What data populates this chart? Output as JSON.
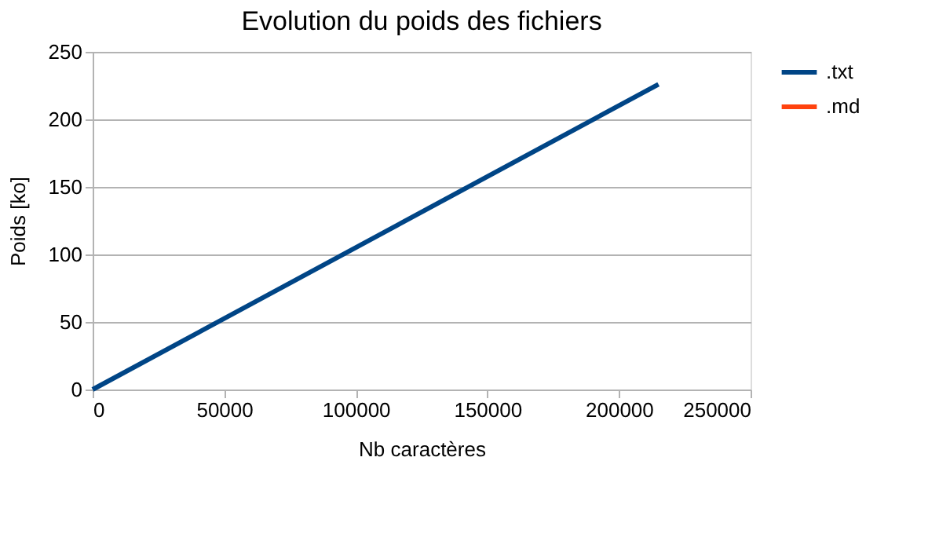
{
  "chart_data": {
    "type": "line",
    "title": "Evolution du poids des fichiers",
    "xlabel": "Nb caractères",
    "ylabel": "Poids [ko]",
    "x": [
      0,
      215000
    ],
    "series": [
      {
        "name": ".txt",
        "color": "#004586",
        "values": [
          0,
          226
        ]
      },
      {
        "name": ".md",
        "color": "#ff420e",
        "values": [
          null,
          null
        ]
      }
    ],
    "xlim": [
      0,
      250000
    ],
    "xticks": [
      0,
      50000,
      100000,
      150000,
      200000,
      250000
    ],
    "ylim": [
      0,
      250
    ],
    "yticks": [
      0,
      50,
      100,
      150,
      200,
      250
    ],
    "grid": "y",
    "legend": "right",
    "marker": "none",
    "line_style": "solid"
  }
}
